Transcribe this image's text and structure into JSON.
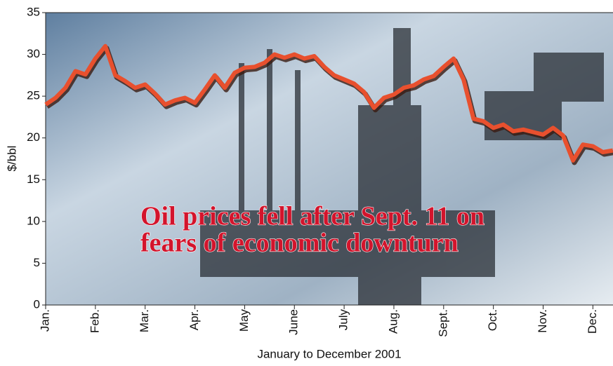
{
  "chart_data": {
    "type": "line",
    "y_label": "$/bbl",
    "x_label": "January to December 2001",
    "annotation": [
      "Oil prices fell after Sept. 11 on",
      "fears of economic downturn"
    ],
    "categories": [
      "Jan.",
      null,
      null,
      null,
      null,
      "Feb.",
      null,
      null,
      null,
      null,
      "Mar.",
      null,
      null,
      null,
      null,
      "Apr.",
      null,
      null,
      null,
      null,
      "May",
      null,
      null,
      null,
      null,
      "June",
      null,
      null,
      null,
      null,
      "July",
      null,
      null,
      null,
      null,
      "Aug.",
      null,
      null,
      null,
      null,
      "Sept.",
      null,
      null,
      null,
      null,
      "Oct.",
      null,
      null,
      null,
      null,
      "Nov.",
      null,
      null,
      null,
      null,
      "Dec.",
      null,
      null
    ],
    "values": [
      24,
      24.8,
      26,
      28,
      27.6,
      29.5,
      31,
      27.5,
      26.8,
      26,
      26.4,
      25.3,
      24,
      24.5,
      24.8,
      24.2,
      25.8,
      27.5,
      26,
      27.8,
      28.4,
      28.5,
      29,
      30,
      29.6,
      30,
      29.5,
      29.8,
      28.5,
      27.5,
      27,
      26.5,
      25.5,
      23.6,
      24.8,
      25.2,
      26,
      26.3,
      27,
      27.4,
      28.5,
      29.5,
      27,
      22.3,
      22,
      21.2,
      21.6,
      20.8,
      21,
      20.7,
      20.4,
      21.2,
      20.3,
      17.3,
      19.2,
      19,
      18.3,
      18.5
    ],
    "color": "#e8502e",
    "ylim": [
      0,
      35
    ],
    "yticks": [
      0,
      5,
      10,
      15,
      20,
      25,
      30,
      35
    ]
  }
}
